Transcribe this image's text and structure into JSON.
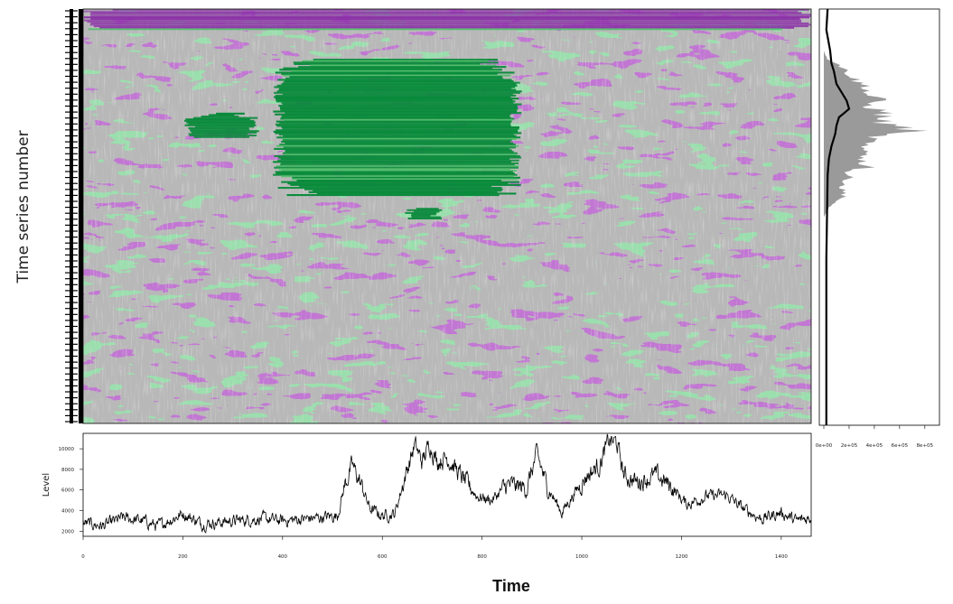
{
  "chart_data": [
    {
      "type": "heatmap",
      "ylabel": "Time series number",
      "colors": {
        "low": "#8a2ea6",
        "mid": "#b8b8b8",
        "high_light": "#52bd6b",
        "high": "#088a3a"
      },
      "x_range": [
        0,
        1460
      ],
      "features": [
        {
          "x": [
            200,
            355
          ],
          "y": [
            0.25,
            0.31
          ],
          "level": "high"
        },
        {
          "x": [
            380,
            880
          ],
          "y": [
            0.12,
            0.45
          ],
          "level": "high"
        },
        {
          "x": [
            640,
            720
          ],
          "y": [
            0.48,
            0.51
          ],
          "level": "high"
        },
        {
          "x": [
            0,
            1460
          ],
          "y": [
            0.0,
            0.05
          ],
          "level": "low"
        }
      ]
    },
    {
      "type": "line",
      "ylabel": "Level",
      "xlabel": "Time",
      "xlim": [
        0,
        1460
      ],
      "ylim": [
        1500,
        11500
      ],
      "xticks": [
        0,
        200,
        400,
        600,
        800,
        1000,
        1200,
        1400
      ],
      "yticks": [
        2000,
        4000,
        6000,
        8000,
        10000
      ],
      "keypoints": [
        [
          0,
          2800
        ],
        [
          40,
          2500
        ],
        [
          80,
          3300
        ],
        [
          120,
          3000
        ],
        [
          150,
          2500
        ],
        [
          200,
          3700
        ],
        [
          240,
          2700
        ],
        [
          300,
          3000
        ],
        [
          360,
          3200
        ],
        [
          400,
          3000
        ],
        [
          470,
          3300
        ],
        [
          510,
          3500
        ],
        [
          525,
          6500
        ],
        [
          540,
          8400
        ],
        [
          555,
          6800
        ],
        [
          575,
          4200
        ],
        [
          600,
          3500
        ],
        [
          625,
          3700
        ],
        [
          645,
          7200
        ],
        [
          665,
          10400
        ],
        [
          680,
          8700
        ],
        [
          695,
          10500
        ],
        [
          710,
          8800
        ],
        [
          730,
          9200
        ],
        [
          760,
          7200
        ],
        [
          790,
          5400
        ],
        [
          820,
          5000
        ],
        [
          850,
          6500
        ],
        [
          890,
          6200
        ],
        [
          910,
          9500
        ],
        [
          930,
          6400
        ],
        [
          960,
          3800
        ],
        [
          980,
          5300
        ],
        [
          1010,
          7400
        ],
        [
          1035,
          8400
        ],
        [
          1055,
          10800
        ],
        [
          1070,
          10600
        ],
        [
          1085,
          7400
        ],
        [
          1110,
          6800
        ],
        [
          1150,
          7400
        ],
        [
          1180,
          6300
        ],
        [
          1210,
          4600
        ],
        [
          1250,
          5400
        ],
        [
          1290,
          5500
        ],
        [
          1320,
          4300
        ],
        [
          1360,
          3200
        ],
        [
          1400,
          3800
        ],
        [
          1430,
          3000
        ],
        [
          1460,
          3300
        ]
      ]
    },
    {
      "type": "area",
      "orientation": "horizontal",
      "xticks": [
        "0e+00",
        "2e+05",
        "4e+05",
        "6e+05",
        "8e+05"
      ],
      "xlim": [
        0,
        880000
      ],
      "series": [
        {
          "style": "gray-fill",
          "points": [
            [
              0,
              0
            ],
            [
              0.1,
              0
            ],
            [
              0.12,
              30000
            ],
            [
              0.13,
              120000
            ],
            [
              0.15,
              200000
            ],
            [
              0.16,
              240000
            ],
            [
              0.18,
              320000
            ],
            [
              0.19,
              420000
            ],
            [
              0.2,
              360000
            ],
            [
              0.22,
              480000
            ],
            [
              0.23,
              380000
            ],
            [
              0.25,
              530000
            ],
            [
              0.27,
              500000
            ],
            [
              0.28,
              580000
            ],
            [
              0.29,
              830000
            ],
            [
              0.3,
              500000
            ],
            [
              0.32,
              380000
            ],
            [
              0.33,
              300000
            ],
            [
              0.35,
              430000
            ],
            [
              0.36,
              300000
            ],
            [
              0.38,
              420000
            ],
            [
              0.39,
              200000
            ],
            [
              0.41,
              220000
            ],
            [
              0.43,
              150000
            ],
            [
              0.45,
              200000
            ],
            [
              0.46,
              100000
            ],
            [
              0.48,
              40000
            ],
            [
              0.5,
              0
            ],
            [
              1,
              0
            ]
          ]
        },
        {
          "style": "black-line",
          "points": [
            [
              0,
              30000
            ],
            [
              0.05,
              20000
            ],
            [
              0.1,
              50000
            ],
            [
              0.13,
              60000
            ],
            [
              0.15,
              80000
            ],
            [
              0.18,
              100000
            ],
            [
              0.2,
              140000
            ],
            [
              0.22,
              180000
            ],
            [
              0.24,
              200000
            ],
            [
              0.25,
              160000
            ],
            [
              0.26,
              120000
            ],
            [
              0.28,
              100000
            ],
            [
              0.3,
              90000
            ],
            [
              0.33,
              60000
            ],
            [
              0.36,
              40000
            ],
            [
              0.4,
              30000
            ],
            [
              0.5,
              25000
            ],
            [
              0.6,
              20000
            ],
            [
              1,
              20000
            ]
          ]
        }
      ]
    }
  ],
  "main": {
    "xlabel": "Time",
    "ylabel": "Time series number"
  }
}
